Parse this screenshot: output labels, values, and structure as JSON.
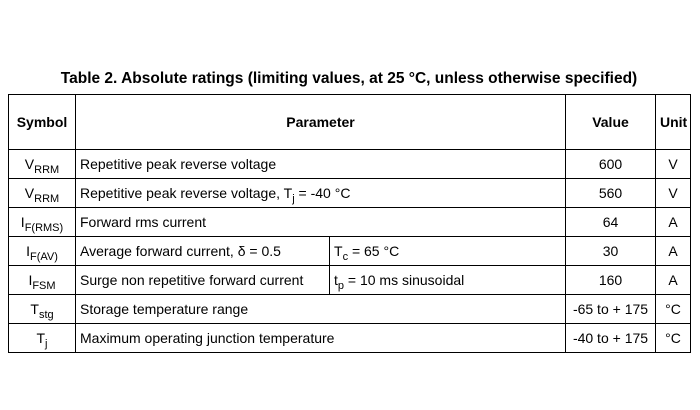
{
  "title": "Table 2. Absolute ratings (limiting values, at 25 °C, unless otherwise specified)",
  "table": {
    "header": {
      "symbol": "Symbol",
      "parameter": "Parameter",
      "value": "Value",
      "unit": "Unit"
    },
    "rows": [
      {
        "symbol": {
          "base": "V",
          "sub": "RRM"
        },
        "parameter": [
          {
            "text": "Repetitive peak reverse voltage"
          }
        ],
        "value": "600",
        "unit": "V"
      },
      {
        "symbol": {
          "base": "V",
          "sub": "RRM"
        },
        "parameter": [
          {
            "text": "Repetitive peak reverse voltage, T"
          },
          {
            "sub": "j"
          },
          {
            "text": " = -40 °C"
          }
        ],
        "value": "560",
        "unit": "V"
      },
      {
        "symbol": {
          "base": "I",
          "sub": "F(RMS)"
        },
        "parameter": [
          {
            "text": "Forward rms current"
          }
        ],
        "value": "64",
        "unit": "A"
      },
      {
        "symbol": {
          "base": "I",
          "sub": "F(AV)"
        },
        "parameter": [
          {
            "text": "Average forward current, δ = 0.5"
          }
        ],
        "condition": [
          {
            "text": "T"
          },
          {
            "sub": "c"
          },
          {
            "text": " = 65 °C"
          }
        ],
        "value": "30",
        "unit": "A"
      },
      {
        "symbol": {
          "base": "I",
          "sub": "FSM"
        },
        "parameter": [
          {
            "text": "Surge non repetitive forward current"
          }
        ],
        "condition": [
          {
            "text": "t"
          },
          {
            "sub": "p"
          },
          {
            "text": " = 10 ms sinusoidal"
          }
        ],
        "value": "160",
        "unit": "A"
      },
      {
        "symbol": {
          "base": "T",
          "sub": "stg"
        },
        "parameter": [
          {
            "text": "Storage temperature range"
          }
        ],
        "value": "-65 to + 175",
        "unit": "°C"
      },
      {
        "symbol": {
          "base": "T",
          "sub": "j"
        },
        "parameter": [
          {
            "text": "Maximum operating junction temperature"
          }
        ],
        "value": "-40 to + 175",
        "unit": "°C"
      }
    ]
  }
}
